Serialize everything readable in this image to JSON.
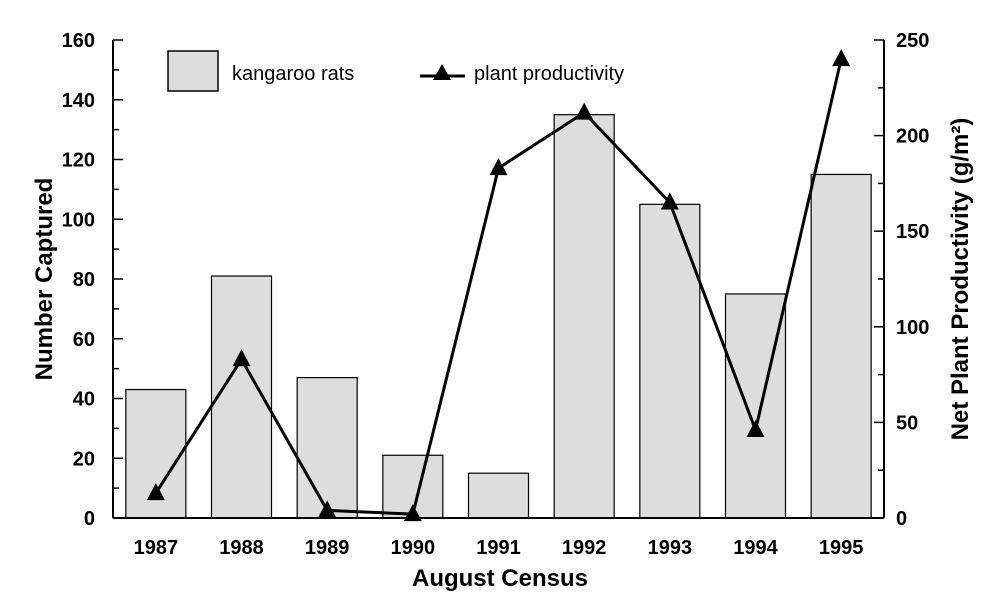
{
  "chart_data": {
    "type": "bar",
    "xlabel": "August Census",
    "ylabel": "Number Captured",
    "y2label": "Net Plant Productivity (g/m²)",
    "categories": [
      "1987",
      "1988",
      "1989",
      "1990",
      "1991",
      "1992",
      "1993",
      "1994",
      "1995"
    ],
    "ylim": [
      0,
      160
    ],
    "y2lim": [
      0,
      250
    ],
    "yticks": [
      0,
      20,
      40,
      60,
      80,
      100,
      120,
      140,
      160
    ],
    "y2ticks": [
      0,
      50,
      100,
      150,
      200,
      250
    ],
    "grid": false,
    "legend_position": "top-left",
    "series": [
      {
        "name": "kangaroo rats",
        "type": "bar",
        "axis": "left",
        "color": "#dddddd",
        "values": [
          43,
          81,
          47,
          21,
          15,
          135,
          105,
          75,
          115
        ]
      },
      {
        "name": "plant productivity",
        "type": "line",
        "axis": "right",
        "marker": "triangle",
        "color": "#000000",
        "values": [
          13,
          83,
          4,
          2,
          183,
          212,
          165,
          46,
          240
        ]
      }
    ]
  }
}
